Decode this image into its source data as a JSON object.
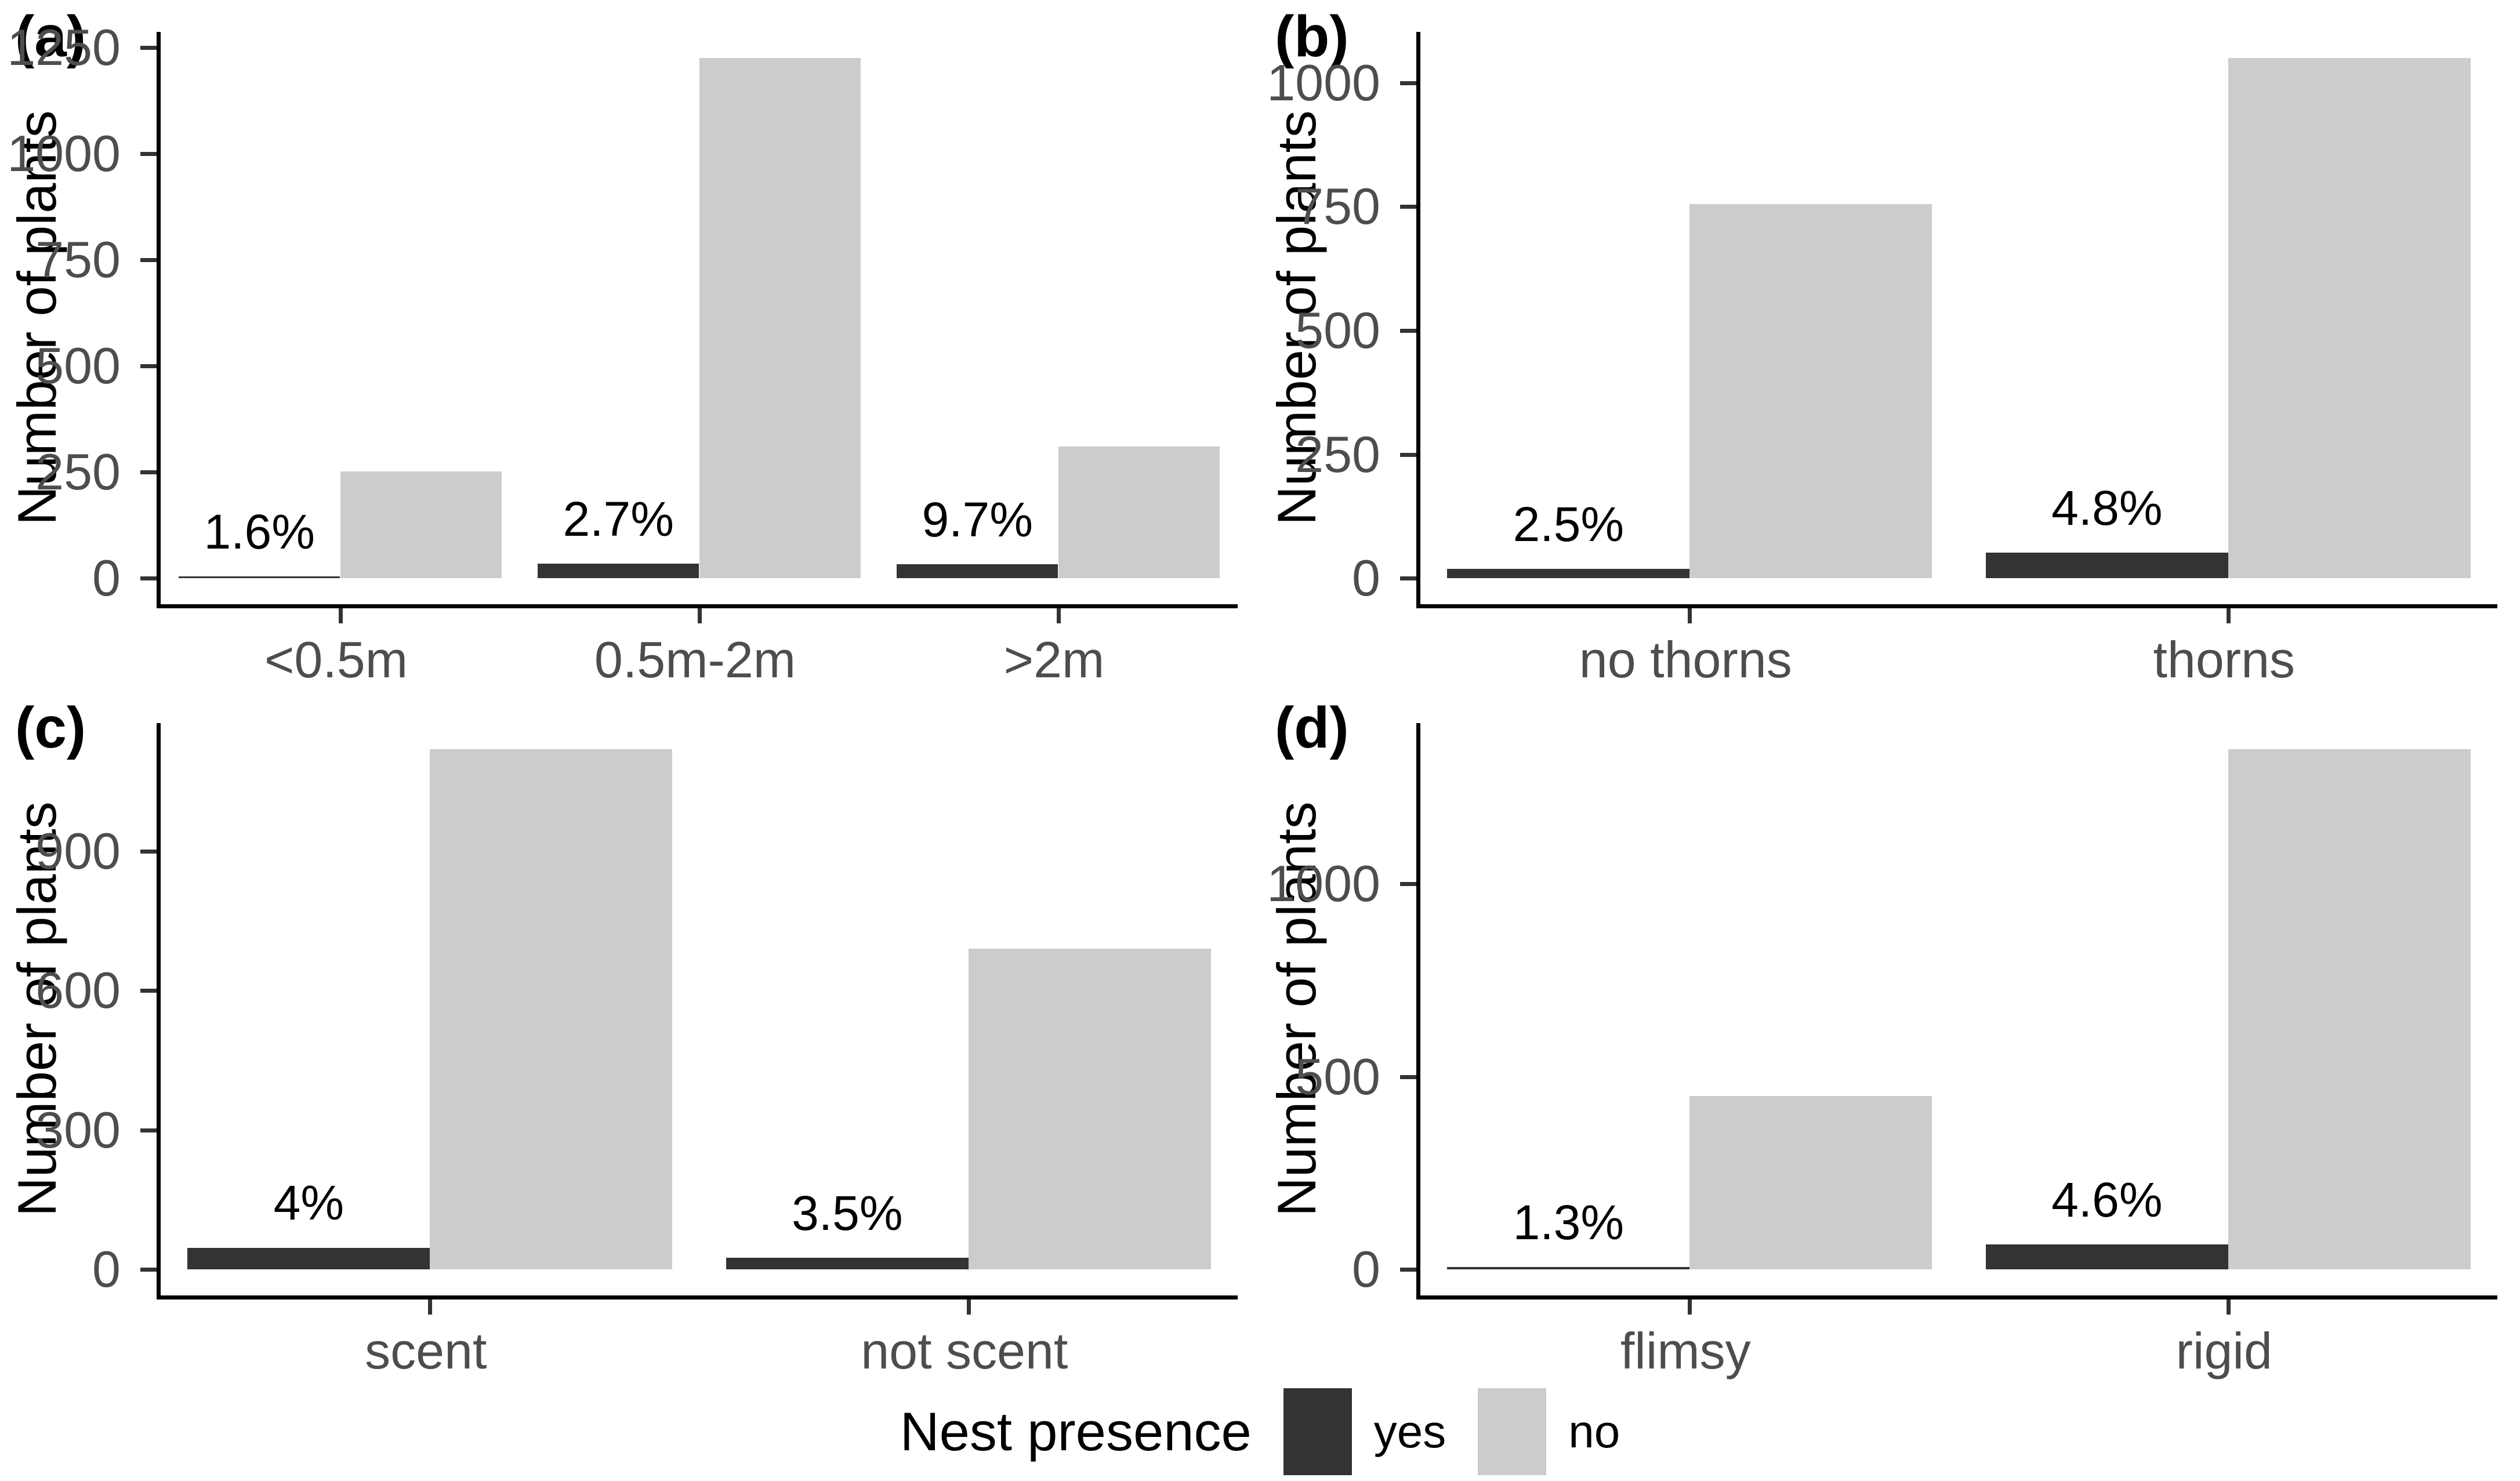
{
  "figure": {
    "background": "#ffffff",
    "axis_color": "#000000",
    "tick_text_color": "#4d4d4d",
    "bar_color_yes": "#333333",
    "bar_color_no": "#cccccc"
  },
  "legend": {
    "title": "Nest presence",
    "entries": [
      {
        "label": "yes",
        "color": "#333333"
      },
      {
        "label": "no",
        "color": "#cccccc"
      }
    ]
  },
  "chart_data": [
    {
      "type": "bar",
      "panel_tag": "(a)",
      "ylabel": "Number of plants",
      "xlabel": "",
      "categories": [
        "<0.5m",
        "0.5m-2m",
        ">2m"
      ],
      "series": [
        {
          "name": "yes",
          "color": "#333333",
          "values": [
            4,
            34,
            33
          ]
        },
        {
          "name": "no",
          "color": "#cccccc",
          "values": [
            252,
            1225,
            310
          ]
        }
      ],
      "bar_labels": [
        "1.6%",
        "2.7%",
        "9.7%"
      ],
      "yticks": [
        0,
        250,
        500,
        750,
        1000,
        1250
      ],
      "ylim": [
        0,
        1286
      ],
      "grid": false,
      "legend_position": "bottom"
    },
    {
      "type": "bar",
      "panel_tag": "(b)",
      "ylabel": "Number of plants",
      "xlabel": "",
      "categories": [
        "no thorns",
        "thorns"
      ],
      "series": [
        {
          "name": "yes",
          "color": "#333333",
          "values": [
            19,
            52
          ]
        },
        {
          "name": "no",
          "color": "#cccccc",
          "values": [
            755,
            1050
          ]
        }
      ],
      "bar_labels": [
        "2.5%",
        "4.8%"
      ],
      "yticks": [
        0,
        250,
        500,
        750,
        1000
      ],
      "ylim": [
        0,
        1103
      ],
      "grid": false,
      "legend_position": "bottom"
    },
    {
      "type": "bar",
      "panel_tag": "(c)",
      "ylabel": "Number of plants",
      "xlabel": "",
      "categories": [
        "scent",
        "not scent"
      ],
      "series": [
        {
          "name": "yes",
          "color": "#333333",
          "values": [
            47,
            25
          ]
        },
        {
          "name": "no",
          "color": "#cccccc",
          "values": [
            1120,
            690
          ]
        }
      ],
      "bar_labels": [
        "4%",
        "3.5%"
      ],
      "yticks": [
        0,
        300,
        600,
        900
      ],
      "ylim": [
        0,
        1176
      ],
      "grid": false,
      "legend_position": "bottom"
    },
    {
      "type": "bar",
      "panel_tag": "(d)",
      "ylabel": "Number of plants",
      "xlabel": "",
      "categories": [
        "flimsy",
        "rigid"
      ],
      "series": [
        {
          "name": "yes",
          "color": "#333333",
          "values": [
            6,
            65
          ]
        },
        {
          "name": "no",
          "color": "#cccccc",
          "values": [
            450,
            1350
          ]
        }
      ],
      "bar_labels": [
        "1.3%",
        "4.6%"
      ],
      "yticks": [
        0,
        500,
        1000
      ],
      "ylim": [
        0,
        1418
      ],
      "grid": false,
      "legend_position": "bottom"
    }
  ]
}
